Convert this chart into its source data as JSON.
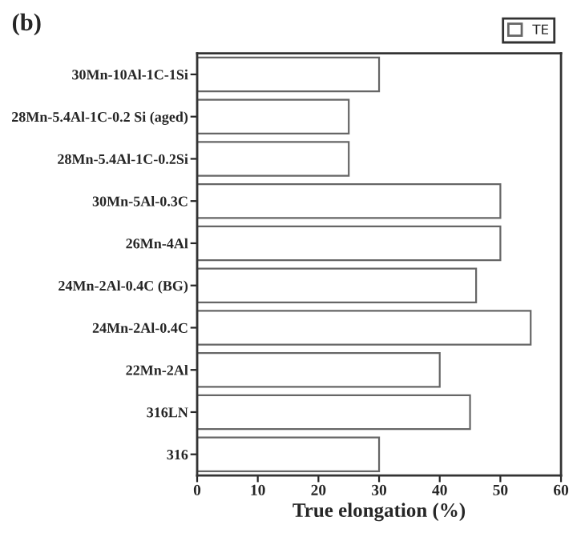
{
  "chart_data": {
    "type": "bar",
    "orientation": "horizontal",
    "title": "(b)",
    "xlabel": "True elongation (%)",
    "categories": [
      "30Mn-10Al-1C-1Si",
      "28Mn-5.4Al-1C-0.2 Si (aged)",
      "28Mn-5.4Al-1C-0.2Si",
      "30Mn-5Al-0.3C",
      "26Mn-4Al",
      "24Mn-2Al-0.4C (BG)",
      "24Mn-2Al-0.4C",
      "22Mn-2Al",
      "316LN",
      "316"
    ],
    "series": [
      {
        "name": "TE",
        "color": "#ffffff",
        "values": [
          30,
          25,
          25,
          50,
          50,
          46,
          55,
          40,
          45,
          30
        ]
      }
    ],
    "xlim": [
      0,
      60
    ],
    "xticks": [
      0,
      10,
      20,
      30,
      40,
      50,
      60
    ],
    "grid": false,
    "legend": "top right"
  }
}
